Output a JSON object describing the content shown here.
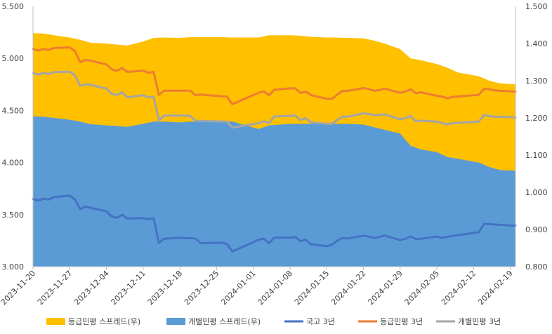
{
  "chart_data": {
    "type": "area",
    "title": "",
    "xlabel": "",
    "ylabel_left": "",
    "ylabel_right": "",
    "left_axis": {
      "min": 3.0,
      "max": 5.5,
      "ticks": [
        "3.000",
        "3.500",
        "4.000",
        "4.500",
        "5.000",
        "5.500"
      ]
    },
    "right_axis": {
      "min": 0.8,
      "max": 1.5,
      "ticks": [
        "0.800",
        "0.900",
        "1.000",
        "1.100",
        "1.200",
        "1.300",
        "1.400",
        "1.500"
      ]
    },
    "x_start": "2023-11-20",
    "x_end": "2024-02-20",
    "x_tick_labels": [
      "2023-11-20",
      "2023-11-27",
      "2023-12-04",
      "2023-12-11",
      "2023-12-18",
      "2023-12-25",
      "2024-01-01",
      "2024-01-08",
      "2024-01-15",
      "2024-01-22",
      "2024-01-29",
      "2024-02-05",
      "2024-02-12",
      "2024-02-19"
    ],
    "grid": false,
    "legend_position": "bottom",
    "series": [
      {
        "name": "등급민평 스프레드(우)",
        "kind": "area",
        "axis": "right",
        "color": "#FFC000",
        "x": [
          "2023-11-20",
          "2023-11-22",
          "2023-11-24",
          "2023-11-27",
          "2023-11-29",
          "2023-12-01",
          "2023-12-04",
          "2023-12-06",
          "2023-12-08",
          "2023-12-11",
          "2023-12-13",
          "2023-12-15",
          "2023-12-18",
          "2023-12-20",
          "2023-12-22",
          "2023-12-26",
          "2023-12-28",
          "2024-01-02",
          "2024-01-04",
          "2024-01-08",
          "2024-01-10",
          "2024-01-12",
          "2024-01-15",
          "2024-01-17",
          "2024-01-19",
          "2024-01-22",
          "2024-01-24",
          "2024-01-26",
          "2024-01-29",
          "2024-01-31",
          "2024-02-02",
          "2024-02-05",
          "2024-02-07",
          "2024-02-09",
          "2024-02-13",
          "2024-02-15",
          "2024-02-17",
          "2024-02-20"
        ],
        "values": [
          1.428,
          1.427,
          1.422,
          1.416,
          1.41,
          1.402,
          1.4,
          1.397,
          1.395,
          1.405,
          1.415,
          1.416,
          1.415,
          1.417,
          1.417,
          1.417,
          1.416,
          1.416,
          1.422,
          1.422,
          1.421,
          1.418,
          1.416,
          1.416,
          1.415,
          1.414,
          1.408,
          1.4,
          1.385,
          1.36,
          1.355,
          1.345,
          1.335,
          1.322,
          1.312,
          1.3,
          1.293,
          1.29
        ]
      },
      {
        "name": "개별민평 스프레드(우)",
        "kind": "area",
        "axis": "right",
        "color": "#5B9BD5",
        "x": [
          "2023-11-20",
          "2023-11-22",
          "2023-11-24",
          "2023-11-27",
          "2023-11-29",
          "2023-12-01",
          "2023-12-04",
          "2023-12-06",
          "2023-12-08",
          "2023-12-11",
          "2023-12-13",
          "2023-12-15",
          "2023-12-18",
          "2023-12-20",
          "2023-12-22",
          "2023-12-26",
          "2023-12-28",
          "2024-01-02",
          "2024-01-04",
          "2024-01-08",
          "2024-01-10",
          "2024-01-12",
          "2024-01-15",
          "2024-01-17",
          "2024-01-19",
          "2024-01-22",
          "2024-01-24",
          "2024-01-26",
          "2024-01-29",
          "2024-01-31",
          "2024-02-02",
          "2024-02-05",
          "2024-02-07",
          "2024-02-09",
          "2024-02-13",
          "2024-02-15",
          "2024-02-17",
          "2024-02-20"
        ],
        "values": [
          1.204,
          1.203,
          1.2,
          1.195,
          1.19,
          1.183,
          1.18,
          1.178,
          1.176,
          1.184,
          1.19,
          1.19,
          1.188,
          1.19,
          1.19,
          1.19,
          1.19,
          1.17,
          1.18,
          1.184,
          1.184,
          1.184,
          1.184,
          1.184,
          1.184,
          1.182,
          1.175,
          1.168,
          1.158,
          1.125,
          1.115,
          1.108,
          1.095,
          1.09,
          1.08,
          1.068,
          1.06,
          1.058
        ]
      },
      {
        "name": "국고 3년",
        "kind": "line",
        "axis": "left",
        "color": "#4472C4",
        "x": [
          "2023-11-20",
          "2023-11-21",
          "2023-11-22",
          "2023-11-23",
          "2023-11-24",
          "2023-11-27",
          "2023-11-28",
          "2023-11-29",
          "2023-11-30",
          "2023-12-01",
          "2023-12-04",
          "2023-12-05",
          "2023-12-06",
          "2023-12-07",
          "2023-12-08",
          "2023-12-11",
          "2023-12-12",
          "2023-12-13",
          "2023-12-14",
          "2023-12-15",
          "2023-12-18",
          "2023-12-19",
          "2023-12-20",
          "2023-12-21",
          "2023-12-22",
          "2023-12-26",
          "2023-12-27",
          "2023-12-28",
          "2024-01-02",
          "2024-01-03",
          "2024-01-04",
          "2024-01-05",
          "2024-01-08",
          "2024-01-09",
          "2024-01-10",
          "2024-01-11",
          "2024-01-12",
          "2024-01-15",
          "2024-01-16",
          "2024-01-17",
          "2024-01-18",
          "2024-01-19",
          "2024-01-22",
          "2024-01-23",
          "2024-01-24",
          "2024-01-25",
          "2024-01-26",
          "2024-01-29",
          "2024-01-30",
          "2024-01-31",
          "2024-02-01",
          "2024-02-02",
          "2024-02-05",
          "2024-02-06",
          "2024-02-07",
          "2024-02-08",
          "2024-02-13",
          "2024-02-14",
          "2024-02-15",
          "2024-02-16",
          "2024-02-19",
          "2024-02-20"
        ],
        "values": [
          3.648,
          3.635,
          3.652,
          3.645,
          3.668,
          3.682,
          3.645,
          3.552,
          3.578,
          3.565,
          3.532,
          3.482,
          3.47,
          3.498,
          3.462,
          3.466,
          3.455,
          3.465,
          3.228,
          3.268,
          3.278,
          3.272,
          3.275,
          3.268,
          3.225,
          3.23,
          3.218,
          3.145,
          3.258,
          3.27,
          3.225,
          3.278,
          3.278,
          3.285,
          3.245,
          3.258,
          3.215,
          3.196,
          3.21,
          3.248,
          3.275,
          3.27,
          3.298,
          3.29,
          3.275,
          3.285,
          3.3,
          3.255,
          3.268,
          3.29,
          3.265,
          3.268,
          3.29,
          3.276,
          3.286,
          3.295,
          3.33,
          3.41,
          3.41,
          3.405,
          3.395,
          3.395
        ]
      },
      {
        "name": "등급민평 3년",
        "kind": "line",
        "axis": "left",
        "color": "#ED7D31",
        "x": [
          "2023-11-20",
          "2023-11-21",
          "2023-11-22",
          "2023-11-23",
          "2023-11-24",
          "2023-11-27",
          "2023-11-28",
          "2023-11-29",
          "2023-11-30",
          "2023-12-01",
          "2023-12-04",
          "2023-12-05",
          "2023-12-06",
          "2023-12-07",
          "2023-12-08",
          "2023-12-11",
          "2023-12-12",
          "2023-12-13",
          "2023-12-14",
          "2023-12-15",
          "2023-12-18",
          "2023-12-19",
          "2023-12-20",
          "2023-12-21",
          "2023-12-22",
          "2023-12-26",
          "2023-12-27",
          "2023-12-28",
          "2024-01-02",
          "2024-01-03",
          "2024-01-04",
          "2024-01-05",
          "2024-01-08",
          "2024-01-09",
          "2024-01-10",
          "2024-01-11",
          "2024-01-12",
          "2024-01-15",
          "2024-01-16",
          "2024-01-17",
          "2024-01-18",
          "2024-01-19",
          "2024-01-22",
          "2024-01-23",
          "2024-01-24",
          "2024-01-25",
          "2024-01-26",
          "2024-01-29",
          "2024-01-30",
          "2024-01-31",
          "2024-02-01",
          "2024-02-02",
          "2024-02-05",
          "2024-02-06",
          "2024-02-07",
          "2024-02-08",
          "2024-02-13",
          "2024-02-14",
          "2024-02-15",
          "2024-02-16",
          "2024-02-19",
          "2024-02-20"
        ],
        "values": [
          5.09,
          5.075,
          5.09,
          5.082,
          5.1,
          5.105,
          5.07,
          4.962,
          4.985,
          4.978,
          4.942,
          4.895,
          4.88,
          4.908,
          4.87,
          4.882,
          4.862,
          4.87,
          4.648,
          4.69,
          4.69,
          4.69,
          4.69,
          4.646,
          4.652,
          4.636,
          4.632,
          4.56,
          4.67,
          4.684,
          4.645,
          4.698,
          4.712,
          4.713,
          4.668,
          4.68,
          4.648,
          4.612,
          4.612,
          4.65,
          4.688,
          4.688,
          4.715,
          4.706,
          4.69,
          4.694,
          4.71,
          4.67,
          4.68,
          4.704,
          4.666,
          4.674,
          4.64,
          4.634,
          4.616,
          4.63,
          4.65,
          4.708,
          4.704,
          4.692,
          4.684,
          4.68
        ]
      },
      {
        "name": "개별민평 3년",
        "kind": "line",
        "axis": "left",
        "color": "#A5A5A5",
        "x": [
          "2023-11-20",
          "2023-11-21",
          "2023-11-22",
          "2023-11-23",
          "2023-11-24",
          "2023-11-27",
          "2023-11-28",
          "2023-11-29",
          "2023-11-30",
          "2023-12-01",
          "2023-12-04",
          "2023-12-05",
          "2023-12-06",
          "2023-12-07",
          "2023-12-08",
          "2023-12-11",
          "2023-12-12",
          "2023-12-13",
          "2023-12-14",
          "2023-12-15",
          "2023-12-18",
          "2023-12-19",
          "2023-12-20",
          "2023-12-21",
          "2023-12-22",
          "2023-12-26",
          "2023-12-27",
          "2023-12-28",
          "2024-01-02",
          "2024-01-03",
          "2024-01-04",
          "2024-01-05",
          "2024-01-08",
          "2024-01-09",
          "2024-01-10",
          "2024-01-11",
          "2024-01-12",
          "2024-01-15",
          "2024-01-16",
          "2024-01-17",
          "2024-01-18",
          "2024-01-19",
          "2024-01-22",
          "2024-01-23",
          "2024-01-24",
          "2024-01-25",
          "2024-01-26",
          "2024-01-29",
          "2024-01-30",
          "2024-01-31",
          "2024-02-01",
          "2024-02-02",
          "2024-02-05",
          "2024-02-06",
          "2024-02-07",
          "2024-02-08",
          "2024-02-13",
          "2024-02-14",
          "2024-02-15",
          "2024-02-16",
          "2024-02-19",
          "2024-02-20"
        ],
        "values": [
          4.86,
          4.845,
          4.86,
          4.85,
          4.868,
          4.872,
          4.836,
          4.735,
          4.752,
          4.745,
          4.71,
          4.66,
          4.648,
          4.674,
          4.626,
          4.646,
          4.625,
          4.632,
          4.405,
          4.45,
          4.45,
          4.45,
          4.446,
          4.4,
          4.4,
          4.395,
          4.392,
          4.335,
          4.378,
          4.396,
          4.378,
          4.442,
          4.448,
          4.452,
          4.408,
          4.426,
          4.385,
          4.372,
          4.372,
          4.408,
          4.44,
          4.44,
          4.472,
          4.466,
          4.455,
          4.456,
          4.462,
          4.416,
          4.428,
          4.446,
          4.396,
          4.402,
          4.392,
          4.378,
          4.366,
          4.378,
          4.393,
          4.456,
          4.446,
          4.44,
          4.436,
          4.43
        ]
      }
    ]
  }
}
